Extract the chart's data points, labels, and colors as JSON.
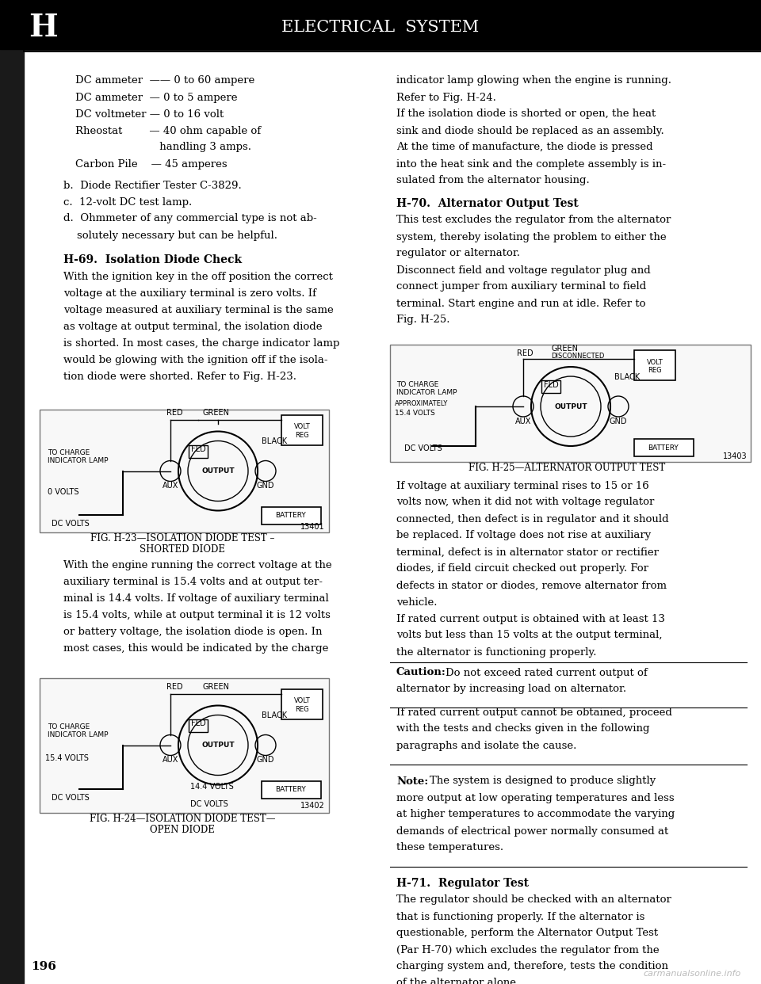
{
  "page_bg": "#ffffff",
  "border_left_bg": "#1a1a1a",
  "header_bg": "#000000",
  "header_text": "ELECTRICAL  SYSTEM",
  "header_letter": "H",
  "header_text_color": "#ffffff",
  "header_letter_color": "#ffffff",
  "separator_color": "#000000",
  "body_text_color": "#000000",
  "page_number": "196",
  "watermark": "carmanualsonline.info",
  "section_h69_title": "H-69.  Isolation Diode Check",
  "section_h69_body": "With the ignition key in the off position the correct\nvoltage at the auxiliary terminal is zero volts. If\nvoltage measured at auxiliary terminal is the same\nas voltage at output terminal, the isolation diode\nis shorted. In most cases, the charge indicator lamp\nwould be glowing with the ignition off if the isola-\ntion diode were shorted. Refer to Fig. H-23.",
  "fig_h23_caption": "FIG. H-23—ISOLATION DIODE TEST –\n            SHORTED DIODE",
  "section_h70_title": "H-70.  Alternator Output Test",
  "section_h70_body": "This test excludes the regulator from the alternator\nsystem, thereby isolating the problem to either the\nregulator or alternator.\nDisconnect field and voltage regulator plug and\nconnect jumper from auxiliary terminal to field\nterminal. Start engine and run at idle. Refer to\nFig. H-25.",
  "fig_h24_caption": "FIG. H-24—ISOLATION DIODE TEST—\n            OPEN DIODE",
  "fig_h25_caption": "FIG. H-25—ALTERNATOR OUTPUT TEST",
  "right_col_body_1": "indicator lamp glowing when the engine is running.\nRefer to Fig. H-24.\nIf the isolation diode is shorted or open, the heat\nsink and diode should be replaced as an assembly.\nAt the time of manufacture, the diode is pressed\ninto the heat sink and the complete assembly is in-\nsulated from the alternator housing.",
  "right_col_h70_body": "If voltage at auxiliary terminal rises to 15 or 16\nvolts now, when it did not with voltage regulator\nconnected, then defect is in regulator and it should\nbe replaced. If voltage does not rise at auxiliary\nterminal, defect is in alternator stator or rectifier\ndiodes, if field circuit checked out properly. For\ndefects in stator or diodes, remove alternator from\nvehicle.\nIf rated current output is obtained with at least 13\nvolts but less than 15 volts at the output terminal,\nthe alternator is functioning properly.",
  "caution_text": "Do not exceed rated current output of\nalternator by increasing load on alternator.",
  "note_text": "If rated current output cannot be obtained, proceed\nwith the tests and checks given in the following\nparagraphs and isolate the cause.",
  "note2_text": "The system is designed to produce slightly\nmore output at low operating temperatures and less\nat higher temperatures to accommodate the varying\ndemands of electrical power normally consumed at\nthese temperatures.",
  "section_h71_title": "H-71.  Regulator Test",
  "section_h71_body": "The regulator should be checked with an alternator\nthat is functioning properly. If the alternator is\nquestionable, perform the Alternator Output Test\n(Par H-70) which excludes the regulator from the\ncharging system and, therefore, tests the condition\nof the alternator alone."
}
